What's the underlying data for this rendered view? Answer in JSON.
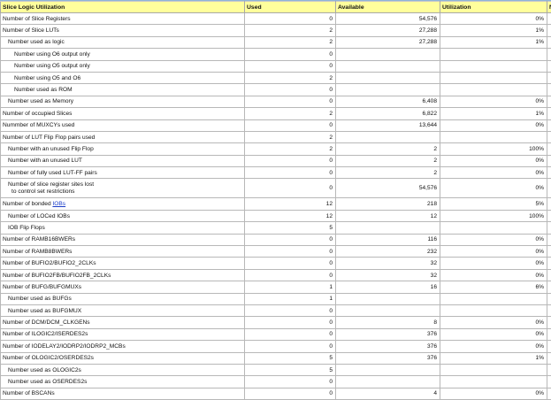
{
  "headers": [
    "Slice Logic Utilization",
    "Used",
    "Available",
    "Utilization",
    "N"
  ],
  "rows": [
    {
      "label": "Number of Slice Registers",
      "level": 0,
      "used": "0",
      "available": "54,576",
      "utilization": "0%"
    },
    {
      "label": "Number of Slice LUTs",
      "level": 0,
      "used": "2",
      "available": "27,288",
      "utilization": "1%"
    },
    {
      "label": "Number used as logic",
      "level": 1,
      "used": "2",
      "available": "27,288",
      "utilization": "1%"
    },
    {
      "label": "Number using O6 output only",
      "level": 2,
      "used": "0",
      "available": "",
      "utilization": ""
    },
    {
      "label": "Number using O5 output only",
      "level": 2,
      "used": "0",
      "available": "",
      "utilization": ""
    },
    {
      "label": "Number using O5 and O6",
      "level": 2,
      "used": "2",
      "available": "",
      "utilization": ""
    },
    {
      "label": "Number used as ROM",
      "level": 2,
      "used": "0",
      "available": "",
      "utilization": ""
    },
    {
      "label": "Number used as Memory",
      "level": 1,
      "used": "0",
      "available": "6,408",
      "utilization": "0%"
    },
    {
      "label": "Number of occupied Slices",
      "level": 0,
      "used": "2",
      "available": "6,822",
      "utilization": "1%"
    },
    {
      "label": "Nummber of MUXCYs used",
      "level": 0,
      "used": "0",
      "available": "13,644",
      "utilization": "0%"
    },
    {
      "label": "Number of LUT Flip Flop pairs used",
      "level": 0,
      "used": "2",
      "available": "",
      "utilization": ""
    },
    {
      "label": "Number with an unused Flip Flop",
      "level": 1,
      "used": "2",
      "available": "2",
      "utilization": "100%"
    },
    {
      "label": "Number with an unused LUT",
      "level": 1,
      "used": "0",
      "available": "2",
      "utilization": "0%"
    },
    {
      "label": "Number of fully used LUT-FF pairs",
      "level": 1,
      "used": "0",
      "available": "2",
      "utilization": "0%"
    },
    {
      "label": "Number of slice register sites lost",
      "label2": "to control set restrictions",
      "level": 1,
      "used": "0",
      "available": "54,576",
      "utilization": "0%"
    },
    {
      "label": "Number of bonded ",
      "link": "IOBs",
      "level": 0,
      "used": "12",
      "available": "218",
      "utilization": "5%"
    },
    {
      "label": "Number of LOCed IOBs",
      "level": 1,
      "used": "12",
      "available": "12",
      "utilization": "100%"
    },
    {
      "label": "IOB Flip Flops",
      "level": 1,
      "used": "5",
      "available": "",
      "utilization": ""
    },
    {
      "label": "Number of RAMB16BWERs",
      "level": 0,
      "used": "0",
      "available": "116",
      "utilization": "0%"
    },
    {
      "label": "Number of RAMB8BWERs",
      "level": 0,
      "used": "0",
      "available": "232",
      "utilization": "0%"
    },
    {
      "label": "Number of BUFIO2/BUFIO2_2CLKs",
      "level": 0,
      "used": "0",
      "available": "32",
      "utilization": "0%"
    },
    {
      "label": "Number of BUFIO2FB/BUFIO2FB_2CLKs",
      "level": 0,
      "used": "0",
      "available": "32",
      "utilization": "0%"
    },
    {
      "label": "Number of BUFG/BUFGMUXs",
      "level": 0,
      "used": "1",
      "available": "16",
      "utilization": "6%"
    },
    {
      "label": "Number used as BUFGs",
      "level": 1,
      "used": "1",
      "available": "",
      "utilization": ""
    },
    {
      "label": "Number used as BUFGMUX",
      "level": 1,
      "used": "0",
      "available": "",
      "utilization": ""
    },
    {
      "label": "Number of DCM/DCM_CLKGENs",
      "level": 0,
      "used": "0",
      "available": "8",
      "utilization": "0%"
    },
    {
      "label": "Number of ILOGIC2/ISERDES2s",
      "level": 0,
      "used": "0",
      "available": "376",
      "utilization": "0%"
    },
    {
      "label": "Number of IODELAY2/IODRP2/IODRP2_MCBs",
      "level": 0,
      "used": "0",
      "available": "376",
      "utilization": "0%"
    },
    {
      "label": "Number of OLOGIC2/OSERDES2s",
      "level": 0,
      "used": "5",
      "available": "376",
      "utilization": "1%"
    },
    {
      "label": "Number used as OLOGIC2s",
      "level": 1,
      "used": "5",
      "available": "",
      "utilization": ""
    },
    {
      "label": "Number used as OSERDES2s",
      "level": 1,
      "used": "0",
      "available": "",
      "utilization": ""
    },
    {
      "label": "Number of BSCANs",
      "level": 0,
      "used": "0",
      "available": "4",
      "utilization": "0%"
    }
  ]
}
